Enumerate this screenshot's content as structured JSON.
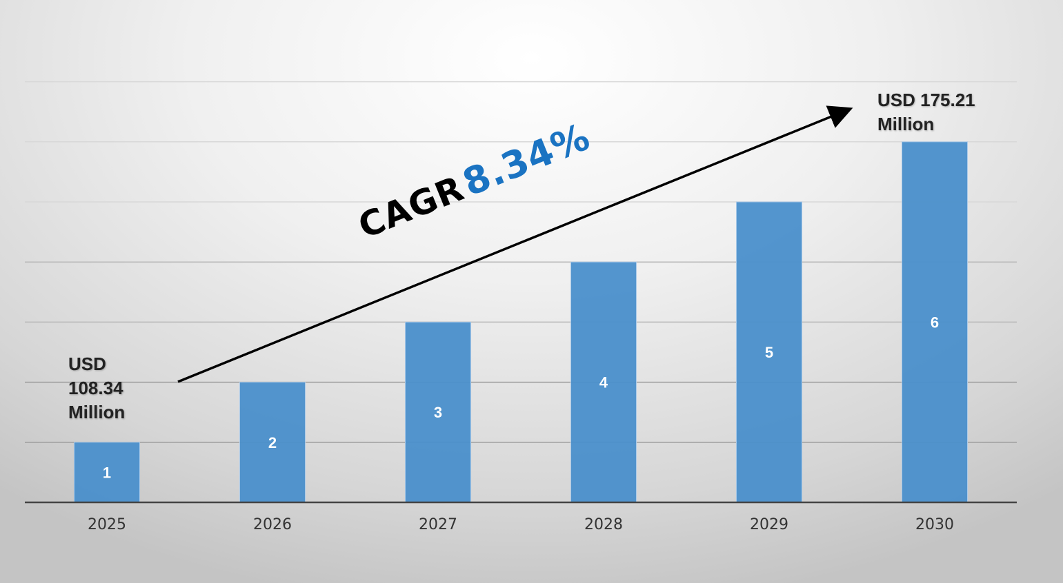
{
  "chart_data": {
    "type": "bar",
    "categories": [
      "2025",
      "2026",
      "2027",
      "2028",
      "2029",
      "2030"
    ],
    "values": [
      1,
      2,
      3,
      4,
      5,
      6
    ],
    "data_labels": [
      "1",
      "2",
      "3",
      "4",
      "5",
      "6"
    ],
    "title": "",
    "xlabel": "",
    "ylabel": "",
    "ylim": [
      0,
      7
    ],
    "grid": true,
    "bar_color": "#4a8fcb",
    "annotations": {
      "start_value": {
        "line1": "USD",
        "line2": "108.34",
        "line3": "Million"
      },
      "end_value": {
        "line1": "USD 175.21",
        "line2": "Million"
      },
      "cagr_label": "CAGR",
      "cagr_value": "8.34%",
      "cagr_color": "#1a73c2",
      "trend_arrow": "arrow-up-right"
    }
  }
}
